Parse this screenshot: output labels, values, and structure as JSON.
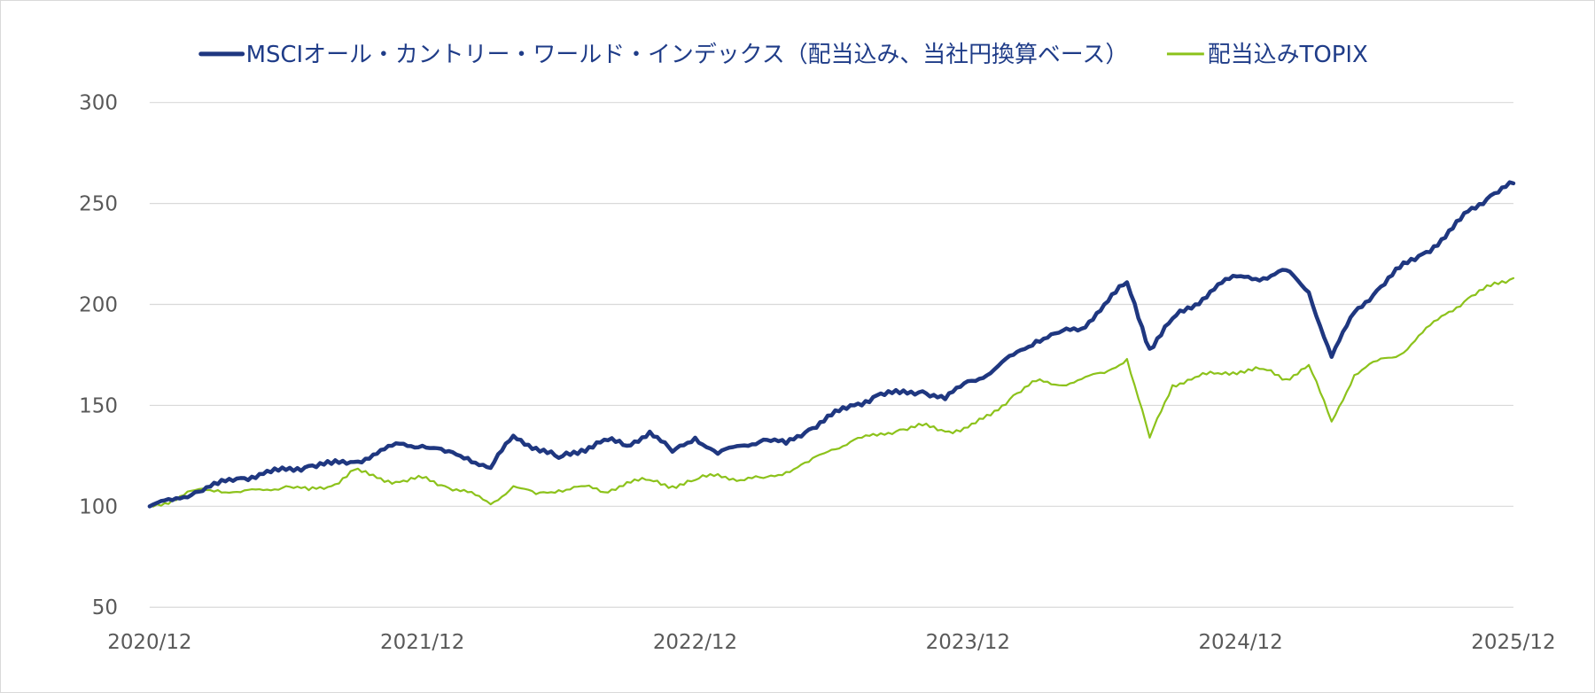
{
  "chart_data": {
    "type": "line",
    "title": "",
    "xlabel": "",
    "ylabel": "",
    "ylim": [
      50,
      300
    ],
    "yticks": [
      "300",
      "250",
      "200",
      "150",
      "100",
      "50"
    ],
    "xticks": [
      "2020/12",
      "2021/12",
      "2022/12",
      "2023/12",
      "2024/12",
      "2025/12"
    ],
    "x_range": [
      "2020/12",
      "2025/12"
    ],
    "grid": true,
    "legend_position": "top",
    "series": [
      {
        "name": "MSCIオール・カントリー・ワールド・インデックス（配当込み、当社円換算ベース）",
        "color": "#1f3780",
        "values": [
          [
            "2020/12",
            100
          ],
          [
            "2021/01",
            103
          ],
          [
            "2021/02",
            107
          ],
          [
            "2021/03",
            111
          ],
          [
            "2021/04",
            114
          ],
          [
            "2021/05",
            116
          ],
          [
            "2021/06",
            118
          ],
          [
            "2021/07",
            120
          ],
          [
            "2021/08",
            121
          ],
          [
            "2021/09",
            122
          ],
          [
            "2021/10",
            126
          ],
          [
            "2021/11",
            131
          ],
          [
            "2021/12",
            130
          ],
          [
            "2022/01",
            127
          ],
          [
            "2022/02",
            124
          ],
          [
            "2022/03",
            119
          ],
          [
            "2022/04",
            135
          ],
          [
            "2022/05",
            129
          ],
          [
            "2022/06",
            124
          ],
          [
            "2022/07",
            128
          ],
          [
            "2022/08",
            133
          ],
          [
            "2022/09",
            130
          ],
          [
            "2022/10",
            137
          ],
          [
            "2022/11",
            127
          ],
          [
            "2022/12",
            134
          ],
          [
            "2023/01",
            126
          ],
          [
            "2023/02",
            130
          ],
          [
            "2023/03",
            133
          ],
          [
            "2023/04",
            131
          ],
          [
            "2023/05",
            138
          ],
          [
            "2023/06",
            145
          ],
          [
            "2023/07",
            150
          ],
          [
            "2023/08",
            155
          ],
          [
            "2023/09",
            156
          ],
          [
            "2023/10",
            157
          ],
          [
            "2023/11",
            153
          ],
          [
            "2023/12",
            162
          ],
          [
            "2024/01",
            166
          ],
          [
            "2024/02",
            175
          ],
          [
            "2024/03",
            182
          ],
          [
            "2024/04",
            186
          ],
          [
            "2024/05",
            188
          ],
          [
            "2024/06",
            200
          ],
          [
            "2024/07",
            211
          ],
          [
            "2024/08",
            178
          ],
          [
            "2024/09",
            193
          ],
          [
            "2024/10",
            200
          ],
          [
            "2024/11",
            210
          ],
          [
            "2024/12",
            214
          ],
          [
            "2025/01",
            213
          ],
          [
            "2025/02",
            217
          ],
          [
            "2025/03",
            206
          ],
          [
            "2025/04",
            174
          ],
          [
            "2025/05",
            196
          ],
          [
            "2025/06",
            207
          ],
          [
            "2025/07",
            218
          ],
          [
            "2025/08",
            225
          ],
          [
            "2025/09",
            233
          ],
          [
            "2025/10",
            246
          ],
          [
            "2025/11",
            254
          ],
          [
            "2025/12",
            260
          ]
        ]
      },
      {
        "name": "配当込みTOPIX",
        "color": "#8cc21b",
        "values": [
          [
            "2020/12",
            100
          ],
          [
            "2021/01",
            103
          ],
          [
            "2021/02",
            108
          ],
          [
            "2021/03",
            108
          ],
          [
            "2021/04",
            107
          ],
          [
            "2021/05",
            108
          ],
          [
            "2021/06",
            110
          ],
          [
            "2021/07",
            108
          ],
          [
            "2021/08",
            110
          ],
          [
            "2021/09",
            118
          ],
          [
            "2021/10",
            114
          ],
          [
            "2021/11",
            112
          ],
          [
            "2021/12",
            114
          ],
          [
            "2022/01",
            110
          ],
          [
            "2022/02",
            107
          ],
          [
            "2022/03",
            101
          ],
          [
            "2022/04",
            110
          ],
          [
            "2022/05",
            106
          ],
          [
            "2022/06",
            108
          ],
          [
            "2022/07",
            110
          ],
          [
            "2022/08",
            107
          ],
          [
            "2022/09",
            112
          ],
          [
            "2022/10",
            113
          ],
          [
            "2022/11",
            110
          ],
          [
            "2022/12",
            113
          ],
          [
            "2023/01",
            116
          ],
          [
            "2023/02",
            113
          ],
          [
            "2023/03",
            114
          ],
          [
            "2023/04",
            117
          ],
          [
            "2023/05",
            122
          ],
          [
            "2023/06",
            128
          ],
          [
            "2023/07",
            133
          ],
          [
            "2023/08",
            135
          ],
          [
            "2023/09",
            138
          ],
          [
            "2023/10",
            140
          ],
          [
            "2023/11",
            137
          ],
          [
            "2023/12",
            139
          ],
          [
            "2024/01",
            145
          ],
          [
            "2024/02",
            155
          ],
          [
            "2024/03",
            162
          ],
          [
            "2024/04",
            160
          ],
          [
            "2024/05",
            163
          ],
          [
            "2024/06",
            166
          ],
          [
            "2024/07",
            173
          ],
          [
            "2024/08",
            134
          ],
          [
            "2024/09",
            160
          ],
          [
            "2024/10",
            164
          ],
          [
            "2024/11",
            166
          ],
          [
            "2024/12",
            167
          ],
          [
            "2025/01",
            168
          ],
          [
            "2025/02",
            163
          ],
          [
            "2025/03",
            170
          ],
          [
            "2025/04",
            142
          ],
          [
            "2025/05",
            165
          ],
          [
            "2025/06",
            172
          ],
          [
            "2025/07",
            175
          ],
          [
            "2025/08",
            186
          ],
          [
            "2025/09",
            195
          ],
          [
            "2025/10",
            203
          ],
          [
            "2025/11",
            209
          ],
          [
            "2025/12",
            213
          ]
        ]
      }
    ]
  }
}
